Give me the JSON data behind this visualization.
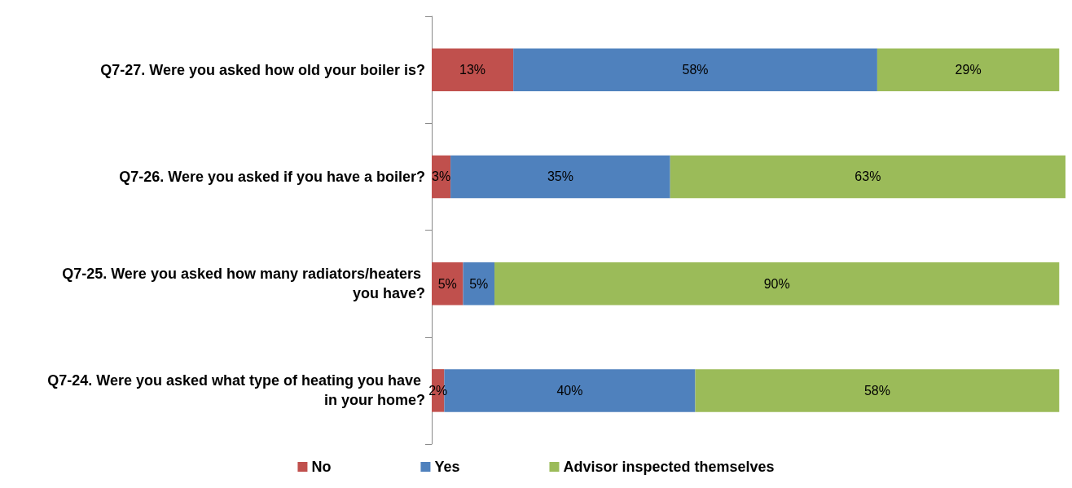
{
  "chart_data": {
    "type": "bar",
    "orientation": "horizontal",
    "stacked": true,
    "legend": "bottom",
    "grid": false,
    "categories": [
      "Q7-27. Were you asked how old your boiler is?",
      "Q7-26. Were you asked if you have a boiler?",
      "Q7-25. Were you asked how many radiators/heaters you have?",
      "Q7-24. Were you asked what type of heating you have in your home?"
    ],
    "series": [
      {
        "name": "No",
        "color": "#c0504d",
        "values": [
          13,
          3,
          5,
          2
        ],
        "value_labels": [
          "13%",
          "3%",
          "5%",
          "2%"
        ]
      },
      {
        "name": "Yes",
        "color": "#4f81bd",
        "values": [
          58,
          35,
          5,
          40
        ],
        "value_labels": [
          "58%",
          "35%",
          "5%",
          "40%"
        ]
      },
      {
        "name": "Advisor inspected themselves",
        "color": "#9bbb59",
        "values": [
          29,
          63,
          90,
          58
        ],
        "value_labels": [
          "29%",
          "63%",
          "90%",
          "58%"
        ]
      }
    ]
  }
}
